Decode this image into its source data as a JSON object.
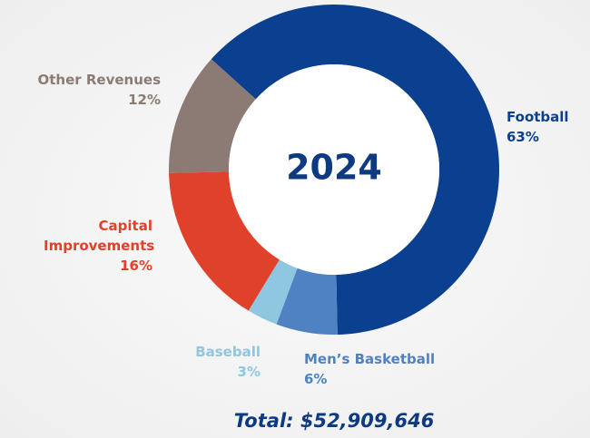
{
  "chart_data": {
    "type": "pie",
    "categories": [
      "Football",
      "Men’s Basketball",
      "Baseball",
      "Capital Improvements",
      "Other Revenues"
    ],
    "values": [
      63,
      6,
      3,
      16,
      12
    ],
    "value_labels": [
      "63%",
      "6%",
      "3%",
      "16%",
      "12%"
    ],
    "colors": [
      "#0b3f8f",
      "#4f82c2",
      "#8fc6e0",
      "#e0412a",
      "#8b7b74"
    ],
    "center_label": "2024",
    "total_label": "Total: $52,909,646"
  }
}
